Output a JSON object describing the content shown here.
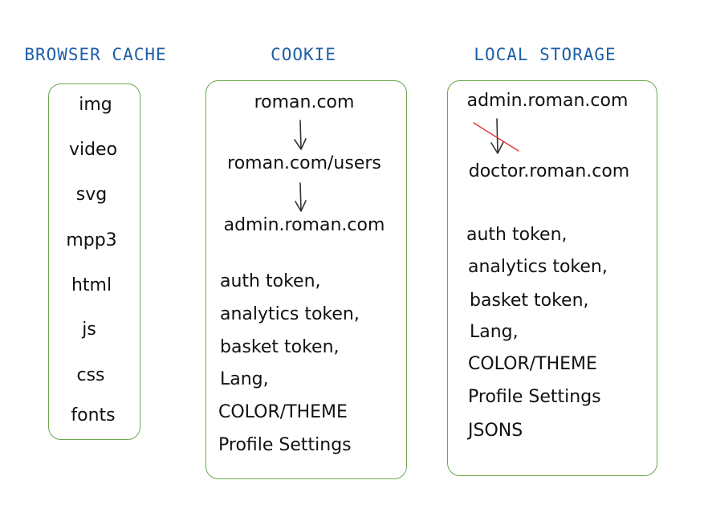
{
  "colors": {
    "heading": "#1f5fa8",
    "box_border": "#6aa84f",
    "text": "#111111",
    "arrow": "#333333",
    "strike": "#e53935"
  },
  "browser_cache": {
    "title": "BROWSER CACHE",
    "items": [
      "img",
      "video",
      "svg",
      "mpp3",
      "html",
      "js",
      "css",
      "fonts"
    ]
  },
  "cookie": {
    "title": "COOKIE",
    "domains": [
      "roman.com",
      "roman.com/users",
      "admin.roman.com"
    ],
    "items": [
      "auth token,",
      "analytics token,",
      "basket token,",
      "Lang,",
      "COLOR/THEME",
      "Profile Settings"
    ]
  },
  "local_storage": {
    "title": "LOCAL STORAGE",
    "domains": [
      "admin.roman.com",
      "doctor.roman.com"
    ],
    "items": [
      "auth token,",
      "analytics token,",
      "basket token,",
      "Lang,",
      "COLOR/THEME",
      "Profile Settings",
      "JSONS"
    ]
  }
}
